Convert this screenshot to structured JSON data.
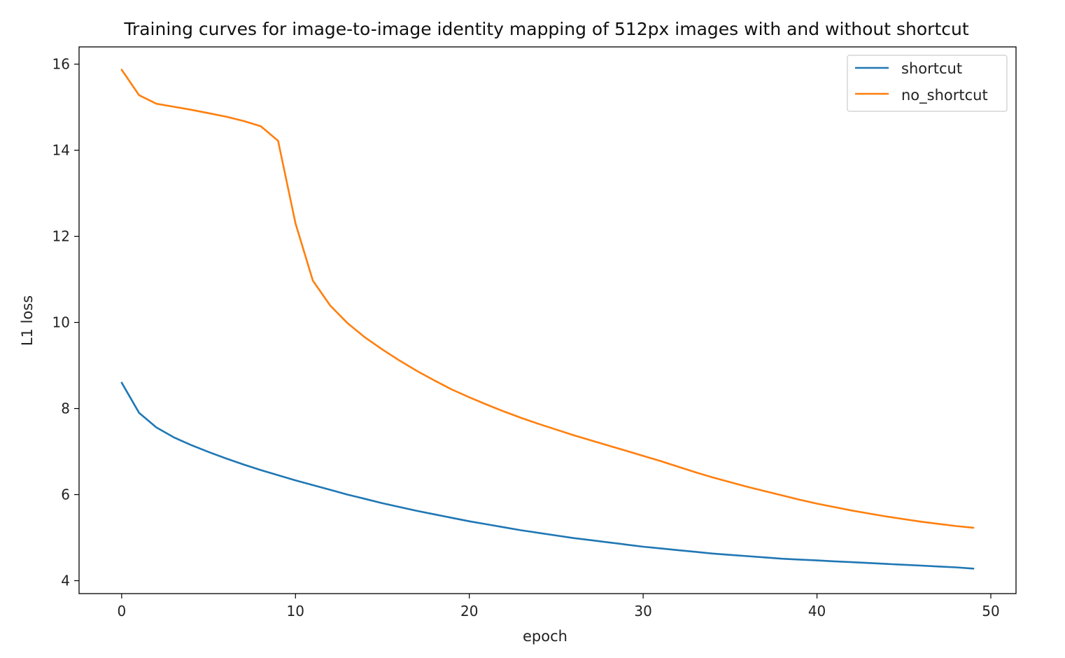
{
  "chart_data": {
    "type": "line",
    "title": "Training curves for image-to-image identity mapping of 512px images with and without shortcut",
    "xlabel": "epoch",
    "ylabel": "L1 loss",
    "xlim": [
      -2.45,
      51.45
    ],
    "ylim": [
      3.7,
      16.4
    ],
    "xticks": [
      0,
      10,
      20,
      30,
      40,
      50
    ],
    "yticks": [
      4,
      6,
      8,
      10,
      12,
      14,
      16
    ],
    "xtick_labels": [
      "0",
      "10",
      "20",
      "30",
      "40",
      "50"
    ],
    "ytick_labels": [
      "4",
      "6",
      "8",
      "10",
      "12",
      "14",
      "16"
    ],
    "grid": false,
    "legend_position": "top-right",
    "x": [
      0,
      1,
      2,
      3,
      4,
      5,
      6,
      7,
      8,
      9,
      10,
      11,
      12,
      13,
      14,
      15,
      16,
      17,
      18,
      19,
      20,
      21,
      22,
      23,
      24,
      25,
      26,
      27,
      28,
      29,
      30,
      31,
      32,
      33,
      34,
      35,
      36,
      37,
      38,
      39,
      40,
      41,
      42,
      43,
      44,
      45,
      46,
      47,
      48,
      49
    ],
    "series": [
      {
        "name": "shortcut",
        "color": "#1f77b4",
        "values": [
          8.6,
          7.9,
          7.56,
          7.33,
          7.15,
          6.99,
          6.84,
          6.7,
          6.57,
          6.45,
          6.33,
          6.22,
          6.11,
          6.0,
          5.9,
          5.8,
          5.71,
          5.62,
          5.54,
          5.46,
          5.38,
          5.31,
          5.24,
          5.17,
          5.11,
          5.05,
          4.99,
          4.94,
          4.89,
          4.84,
          4.79,
          4.75,
          4.71,
          4.67,
          4.63,
          4.6,
          4.57,
          4.54,
          4.51,
          4.49,
          4.47,
          4.45,
          4.43,
          4.41,
          4.39,
          4.37,
          4.35,
          4.33,
          4.31,
          4.28
        ]
      },
      {
        "name": "no_shortcut",
        "color": "#ff7f0e",
        "values": [
          15.87,
          15.28,
          15.08,
          15.01,
          14.94,
          14.86,
          14.78,
          14.68,
          14.56,
          14.22,
          12.3,
          10.97,
          10.39,
          9.98,
          9.65,
          9.37,
          9.11,
          8.87,
          8.65,
          8.44,
          8.26,
          8.09,
          7.93,
          7.78,
          7.64,
          7.51,
          7.38,
          7.26,
          7.14,
          7.02,
          6.9,
          6.78,
          6.65,
          6.52,
          6.4,
          6.29,
          6.18,
          6.08,
          5.98,
          5.88,
          5.79,
          5.71,
          5.63,
          5.56,
          5.49,
          5.43,
          5.37,
          5.32,
          5.27,
          5.23
        ]
      }
    ]
  }
}
